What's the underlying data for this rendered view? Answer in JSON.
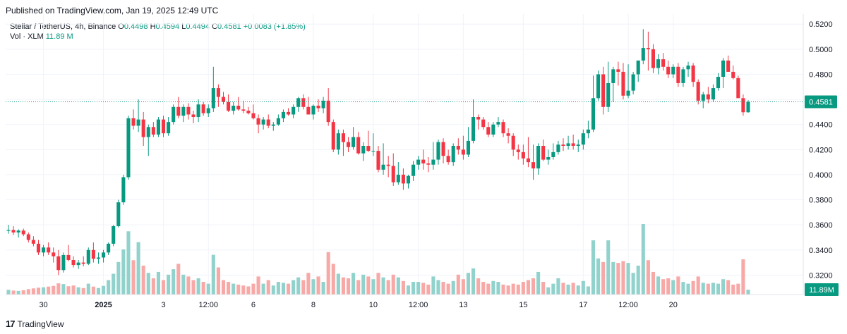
{
  "header": {
    "published": "Published on TradingView.com, Jan 19, 2025 12:49 UTC"
  },
  "legend": {
    "symbol": "Stellar / TetherUS, 4h, Binance",
    "open_label": "O",
    "open": "0.4498",
    "high_label": "H",
    "high": "0.4594",
    "low_label": "L",
    "low": "0.4494",
    "close_label": "C",
    "close": "0.4581",
    "change": "+0.0083 (+1.85%)",
    "vol_label": "Vol · XLM",
    "vol_value": "11.89 M"
  },
  "footer": {
    "brand": "TradingView"
  },
  "colors": {
    "up": "#089981",
    "down": "#f23645",
    "vol_up": "#92d2cc",
    "vol_down": "#f7a9a7",
    "grid": "#f0f3fa"
  },
  "chart_data": {
    "type": "candlestick",
    "y_ticks": [
      "0.5200",
      "0.5000",
      "0.4800",
      "0.4600",
      "0.4400",
      "0.4200",
      "0.4000",
      "0.3800",
      "0.3600",
      "0.3400",
      "0.3200"
    ],
    "ylim": [
      0.3045,
      0.528
    ],
    "last_price_label": "0.4581",
    "last_price": 0.4581,
    "last_volume_label": "11.89M",
    "x_ticks": [
      {
        "label": "30",
        "index": 7
      },
      {
        "label": "2025",
        "index": 19
      },
      {
        "label": "3",
        "index": 31
      },
      {
        "label": "12:00",
        "index": 40
      },
      {
        "label": "6",
        "index": 49
      },
      {
        "label": "8",
        "index": 61
      },
      {
        "label": "10",
        "index": 73
      },
      {
        "label": "12:00",
        "index": 82
      },
      {
        "label": "13",
        "index": 91
      },
      {
        "label": "15",
        "index": 103
      },
      {
        "label": "17",
        "index": 115
      },
      {
        "label": "12:00",
        "index": 124
      },
      {
        "label": "20",
        "index": 133
      }
    ],
    "candles": [
      [
        0.3553,
        0.36,
        0.353,
        0.356,
        26
      ],
      [
        0.356,
        0.359,
        0.352,
        0.354,
        22
      ],
      [
        0.354,
        0.3565,
        0.35,
        0.3555,
        20
      ],
      [
        0.3555,
        0.357,
        0.351,
        0.3525,
        24
      ],
      [
        0.3525,
        0.354,
        0.346,
        0.348,
        30
      ],
      [
        0.348,
        0.351,
        0.343,
        0.345,
        34
      ],
      [
        0.345,
        0.348,
        0.336,
        0.338,
        38
      ],
      [
        0.338,
        0.344,
        0.335,
        0.342,
        40
      ],
      [
        0.342,
        0.346,
        0.336,
        0.338,
        44
      ],
      [
        0.338,
        0.342,
        0.33,
        0.335,
        48
      ],
      [
        0.335,
        0.34,
        0.32,
        0.324,
        62
      ],
      [
        0.324,
        0.338,
        0.322,
        0.336,
        58
      ],
      [
        0.336,
        0.344,
        0.331,
        0.332,
        46
      ],
      [
        0.332,
        0.335,
        0.326,
        0.328,
        50
      ],
      [
        0.328,
        0.332,
        0.325,
        0.33,
        40
      ],
      [
        0.33,
        0.335,
        0.327,
        0.329,
        36
      ],
      [
        0.329,
        0.342,
        0.328,
        0.34,
        60
      ],
      [
        0.34,
        0.346,
        0.33,
        0.333,
        44
      ],
      [
        0.333,
        0.338,
        0.329,
        0.334,
        36
      ],
      [
        0.334,
        0.34,
        0.33,
        0.338,
        48
      ],
      [
        0.338,
        0.346,
        0.336,
        0.345,
        80
      ],
      [
        0.345,
        0.36,
        0.343,
        0.359,
        115
      ],
      [
        0.359,
        0.38,
        0.358,
        0.378,
        180
      ],
      [
        0.378,
        0.4,
        0.376,
        0.398,
        250
      ],
      [
        0.398,
        0.447,
        0.396,
        0.445,
        350
      ],
      [
        0.445,
        0.452,
        0.436,
        0.439,
        190
      ],
      [
        0.439,
        0.46,
        0.434,
        0.444,
        290
      ],
      [
        0.444,
        0.45,
        0.423,
        0.43,
        160
      ],
      [
        0.43,
        0.44,
        0.415,
        0.438,
        120
      ],
      [
        0.438,
        0.442,
        0.43,
        0.432,
        90
      ],
      [
        0.432,
        0.446,
        0.43,
        0.444,
        125
      ],
      [
        0.444,
        0.447,
        0.43,
        0.433,
        80
      ],
      [
        0.433,
        0.446,
        0.431,
        0.442,
        110
      ],
      [
        0.442,
        0.456,
        0.44,
        0.454,
        140
      ],
      [
        0.454,
        0.462,
        0.445,
        0.447,
        170
      ],
      [
        0.447,
        0.456,
        0.442,
        0.454,
        110
      ],
      [
        0.454,
        0.457,
        0.444,
        0.448,
        100
      ],
      [
        0.448,
        0.451,
        0.441,
        0.446,
        80
      ],
      [
        0.446,
        0.46,
        0.442,
        0.456,
        90
      ],
      [
        0.456,
        0.458,
        0.447,
        0.449,
        70
      ],
      [
        0.449,
        0.456,
        0.446,
        0.453,
        60
      ],
      [
        0.453,
        0.486,
        0.45,
        0.469,
        220
      ],
      [
        0.469,
        0.472,
        0.454,
        0.462,
        150
      ],
      [
        0.462,
        0.466,
        0.456,
        0.458,
        80
      ],
      [
        0.458,
        0.464,
        0.45,
        0.451,
        70
      ],
      [
        0.451,
        0.458,
        0.448,
        0.455,
        60
      ],
      [
        0.455,
        0.462,
        0.451,
        0.452,
        55
      ],
      [
        0.452,
        0.459,
        0.449,
        0.451,
        50
      ],
      [
        0.451,
        0.454,
        0.448,
        0.449,
        45
      ],
      [
        0.449,
        0.456,
        0.444,
        0.445,
        60
      ],
      [
        0.445,
        0.448,
        0.433,
        0.44,
        100
      ],
      [
        0.44,
        0.446,
        0.436,
        0.444,
        60
      ],
      [
        0.444,
        0.448,
        0.437,
        0.439,
        80
      ],
      [
        0.439,
        0.442,
        0.435,
        0.44,
        50
      ],
      [
        0.44,
        0.448,
        0.439,
        0.445,
        70
      ],
      [
        0.445,
        0.452,
        0.442,
        0.45,
        65
      ],
      [
        0.45,
        0.453,
        0.447,
        0.448,
        60
      ],
      [
        0.448,
        0.456,
        0.445,
        0.454,
        80
      ],
      [
        0.454,
        0.462,
        0.45,
        0.461,
        95
      ],
      [
        0.461,
        0.464,
        0.452,
        0.454,
        80
      ],
      [
        0.454,
        0.462,
        0.448,
        0.448,
        120
      ],
      [
        0.448,
        0.456,
        0.444,
        0.455,
        85
      ],
      [
        0.455,
        0.46,
        0.45,
        0.453,
        100
      ],
      [
        0.453,
        0.462,
        0.449,
        0.459,
        70
      ],
      [
        0.459,
        0.469,
        0.439,
        0.442,
        235
      ],
      [
        0.442,
        0.444,
        0.418,
        0.42,
        170
      ],
      [
        0.42,
        0.436,
        0.416,
        0.433,
        115
      ],
      [
        0.433,
        0.436,
        0.415,
        0.426,
        95
      ],
      [
        0.426,
        0.43,
        0.418,
        0.422,
        90
      ],
      [
        0.422,
        0.438,
        0.42,
        0.43,
        120
      ],
      [
        0.43,
        0.434,
        0.416,
        0.417,
        80
      ],
      [
        0.417,
        0.426,
        0.411,
        0.423,
        110
      ],
      [
        0.423,
        0.435,
        0.418,
        0.419,
        100
      ],
      [
        0.419,
        0.433,
        0.415,
        0.419,
        85
      ],
      [
        0.419,
        0.423,
        0.402,
        0.404,
        120
      ],
      [
        0.404,
        0.425,
        0.4,
        0.408,
        95
      ],
      [
        0.408,
        0.415,
        0.398,
        0.407,
        80
      ],
      [
        0.407,
        0.417,
        0.391,
        0.394,
        110
      ],
      [
        0.394,
        0.41,
        0.392,
        0.4,
        95
      ],
      [
        0.4,
        0.405,
        0.388,
        0.393,
        75
      ],
      [
        0.393,
        0.4,
        0.389,
        0.399,
        50
      ],
      [
        0.399,
        0.411,
        0.395,
        0.408,
        70
      ],
      [
        0.408,
        0.415,
        0.404,
        0.412,
        70
      ],
      [
        0.412,
        0.42,
        0.404,
        0.409,
        65
      ],
      [
        0.409,
        0.414,
        0.402,
        0.408,
        55
      ],
      [
        0.408,
        0.426,
        0.404,
        0.412,
        100
      ],
      [
        0.412,
        0.428,
        0.408,
        0.426,
        80
      ],
      [
        0.426,
        0.429,
        0.409,
        0.415,
        70
      ],
      [
        0.415,
        0.42,
        0.408,
        0.41,
        60
      ],
      [
        0.41,
        0.425,
        0.407,
        0.423,
        75
      ],
      [
        0.423,
        0.429,
        0.416,
        0.42,
        110
      ],
      [
        0.42,
        0.431,
        0.412,
        0.416,
        85
      ],
      [
        0.416,
        0.438,
        0.414,
        0.427,
        120
      ],
      [
        0.427,
        0.46,
        0.425,
        0.446,
        145
      ],
      [
        0.446,
        0.448,
        0.436,
        0.444,
        90
      ],
      [
        0.444,
        0.446,
        0.436,
        0.438,
        70
      ],
      [
        0.438,
        0.442,
        0.43,
        0.432,
        60
      ],
      [
        0.432,
        0.442,
        0.43,
        0.44,
        75
      ],
      [
        0.44,
        0.446,
        0.438,
        0.442,
        70
      ],
      [
        0.442,
        0.444,
        0.43,
        0.433,
        55
      ],
      [
        0.433,
        0.437,
        0.425,
        0.431,
        50
      ],
      [
        0.431,
        0.433,
        0.415,
        0.42,
        60
      ],
      [
        0.42,
        0.424,
        0.412,
        0.418,
        55
      ],
      [
        0.418,
        0.424,
        0.408,
        0.413,
        70
      ],
      [
        0.413,
        0.43,
        0.406,
        0.41,
        80
      ],
      [
        0.41,
        0.424,
        0.396,
        0.405,
        90
      ],
      [
        0.405,
        0.425,
        0.4,
        0.423,
        125
      ],
      [
        0.423,
        0.428,
        0.411,
        0.412,
        70
      ],
      [
        0.412,
        0.42,
        0.408,
        0.414,
        40
      ],
      [
        0.414,
        0.425,
        0.412,
        0.418,
        60
      ],
      [
        0.418,
        0.427,
        0.416,
        0.424,
        90
      ],
      [
        0.424,
        0.429,
        0.419,
        0.423,
        65
      ],
      [
        0.423,
        0.431,
        0.42,
        0.425,
        55
      ],
      [
        0.425,
        0.432,
        0.42,
        0.423,
        65
      ],
      [
        0.423,
        0.428,
        0.418,
        0.424,
        50
      ],
      [
        0.424,
        0.436,
        0.42,
        0.433,
        75
      ],
      [
        0.433,
        0.443,
        0.429,
        0.436,
        45
      ],
      [
        0.436,
        0.479,
        0.434,
        0.461,
        300
      ],
      [
        0.461,
        0.483,
        0.459,
        0.48,
        200
      ],
      [
        0.48,
        0.486,
        0.448,
        0.454,
        180
      ],
      [
        0.454,
        0.49,
        0.45,
        0.473,
        300
      ],
      [
        0.473,
        0.486,
        0.458,
        0.484,
        180
      ],
      [
        0.484,
        0.49,
        0.471,
        0.482,
        175
      ],
      [
        0.482,
        0.489,
        0.46,
        0.463,
        185
      ],
      [
        0.463,
        0.488,
        0.461,
        0.467,
        175
      ],
      [
        0.467,
        0.482,
        0.464,
        0.48,
        120
      ],
      [
        0.48,
        0.49,
        0.474,
        0.491,
        160
      ],
      [
        0.491,
        0.516,
        0.488,
        0.501,
        390
      ],
      [
        0.501,
        0.514,
        0.483,
        0.5,
        190
      ],
      [
        0.5,
        0.504,
        0.481,
        0.485,
        125
      ],
      [
        0.485,
        0.496,
        0.48,
        0.492,
        100
      ],
      [
        0.492,
        0.497,
        0.483,
        0.486,
        85
      ],
      [
        0.486,
        0.491,
        0.477,
        0.48,
        90
      ],
      [
        0.48,
        0.488,
        0.477,
        0.486,
        80
      ],
      [
        0.486,
        0.489,
        0.47,
        0.473,
        100
      ],
      [
        0.473,
        0.486,
        0.47,
        0.484,
        70
      ],
      [
        0.484,
        0.49,
        0.478,
        0.487,
        60
      ],
      [
        0.487,
        0.489,
        0.47,
        0.474,
        75
      ],
      [
        0.474,
        0.476,
        0.456,
        0.459,
        100
      ],
      [
        0.459,
        0.466,
        0.453,
        0.464,
        65
      ],
      [
        0.464,
        0.47,
        0.457,
        0.46,
        60
      ],
      [
        0.46,
        0.472,
        0.458,
        0.469,
        65
      ],
      [
        0.469,
        0.481,
        0.467,
        0.478,
        60
      ],
      [
        0.478,
        0.493,
        0.469,
        0.491,
        85
      ],
      [
        0.491,
        0.495,
        0.482,
        0.482,
        80
      ],
      [
        0.482,
        0.487,
        0.476,
        0.477,
        55
      ],
      [
        0.477,
        0.479,
        0.462,
        0.461,
        60
      ],
      [
        0.461,
        0.464,
        0.447,
        0.4498,
        195
      ],
      [
        0.4498,
        0.4594,
        0.4494,
        0.4581,
        27
      ]
    ]
  }
}
